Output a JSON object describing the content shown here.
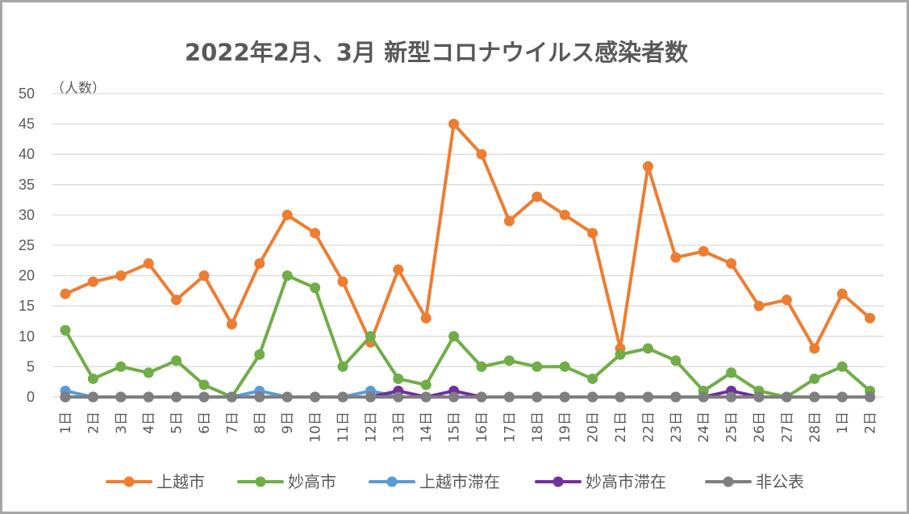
{
  "chart_data": {
    "type": "line",
    "title": "2022年2月、3月 新型コロナウイルス感染者数",
    "ylabel": "（人数）",
    "xlabel": "",
    "ylim": [
      0,
      50
    ],
    "yticks": [
      0,
      5,
      10,
      15,
      20,
      25,
      30,
      35,
      40,
      45,
      50
    ],
    "grid": true,
    "legend_position": "bottom",
    "categories": [
      "1日",
      "2日",
      "3日",
      "4日",
      "5日",
      "6日",
      "7日",
      "8日",
      "9日",
      "10日",
      "11日",
      "12日",
      "13日",
      "14日",
      "15日",
      "16日",
      "17日",
      "18日",
      "19日",
      "20日",
      "21日",
      "22日",
      "23日",
      "24日",
      "25日",
      "26日",
      "27日",
      "28日",
      "1日",
      "2日"
    ],
    "series": [
      {
        "name": "上越市",
        "color": "#ed7d31",
        "values": [
          17,
          19,
          20,
          22,
          16,
          20,
          12,
          22,
          30,
          27,
          19,
          9,
          21,
          13,
          45,
          40,
          29,
          33,
          30,
          27,
          8,
          38,
          23,
          24,
          22,
          15,
          16,
          8,
          17,
          13
        ]
      },
      {
        "name": "妙高市",
        "color": "#70ad47",
        "values": [
          11,
          3,
          5,
          4,
          6,
          2,
          0,
          7,
          20,
          18,
          5,
          10,
          3,
          2,
          10,
          5,
          6,
          5,
          5,
          3,
          7,
          8,
          6,
          1,
          4,
          1,
          0,
          3,
          5,
          1
        ]
      },
      {
        "name": "上越市滞在",
        "color": "#5b9bd5",
        "values": [
          1,
          0,
          0,
          0,
          0,
          0,
          0,
          1,
          0,
          0,
          0,
          1,
          0,
          0,
          0,
          0,
          0,
          0,
          0,
          0,
          0,
          0,
          0,
          0,
          0,
          0,
          0,
          0,
          0,
          0
        ]
      },
      {
        "name": "妙高市滞在",
        "color": "#7030a0",
        "values": [
          0,
          0,
          0,
          0,
          0,
          0,
          0,
          0,
          0,
          0,
          0,
          0,
          1,
          0,
          1,
          0,
          0,
          0,
          0,
          0,
          0,
          0,
          0,
          0,
          1,
          0,
          0,
          0,
          0,
          0
        ]
      },
      {
        "name": "非公表",
        "color": "#7f7f7f",
        "values": [
          0,
          0,
          0,
          0,
          0,
          0,
          0,
          0,
          0,
          0,
          0,
          0,
          0,
          0,
          0,
          0,
          0,
          0,
          0,
          0,
          0,
          0,
          0,
          0,
          0,
          0,
          0,
          0,
          0,
          0
        ]
      }
    ]
  }
}
